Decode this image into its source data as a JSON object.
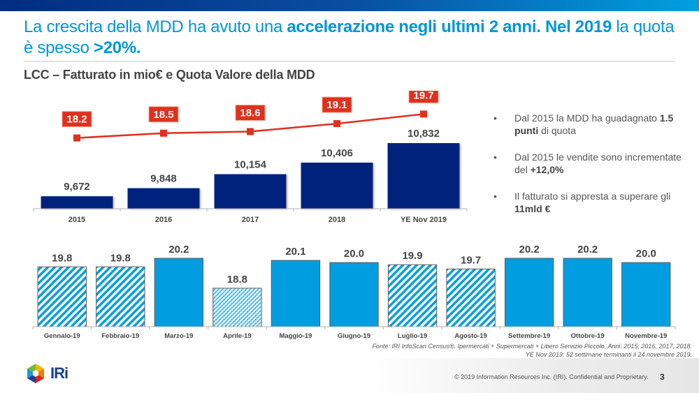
{
  "header": {
    "headline_parts": [
      {
        "text": "La crescita della MDD ha avuto una ",
        "bold": false
      },
      {
        "text": "accelerazione negli ultimi 2 anni. Nel 2019",
        "bold": true
      },
      {
        "text": " la quota è spesso ",
        "bold": false
      },
      {
        "text": ">20%.",
        "bold": true
      }
    ],
    "subtitle": "LCC – Fatturato in mio€ e Quota Valore della MDD"
  },
  "colors": {
    "bar_navy": "#00237d",
    "line_red": "#e0301e",
    "bar_blue": "#009ee0",
    "headline_blue": "#0096d6"
  },
  "chart_data": [
    {
      "type": "bar",
      "title": "Fatturato in mio€ e Quota Valore della MDD",
      "categories": [
        "2015",
        "2016",
        "2017",
        "2018",
        "YE Nov 2019"
      ],
      "series": [
        {
          "name": "Fatturato (mio€)",
          "kind": "bar",
          "values": [
            9672,
            9848,
            10154,
            10406,
            10832
          ],
          "labels": [
            "9,672",
            "9,848",
            "10,154",
            "10,406",
            "10,832"
          ]
        },
        {
          "name": "Quota Valore MDD (%)",
          "kind": "line",
          "values": [
            18.2,
            18.5,
            18.6,
            19.1,
            19.7
          ],
          "labels": [
            "18.2",
            "18.5",
            "18.6",
            "19.1",
            "19.7"
          ]
        }
      ],
      "xlabel": "",
      "ylabel": "",
      "grid": false,
      "legend": "none"
    },
    {
      "type": "bar",
      "title": "Quota Valore MDD mensile 2019",
      "categories": [
        "Gennaio-19",
        "Febbraio-19",
        "Marzo-19",
        "Aprile-19",
        "Maggio-19",
        "Giugno-19",
        "Luglio-19",
        "Agosto-19",
        "Settembre-19",
        "Ottobre-19",
        "Novembre-19"
      ],
      "values": [
        19.8,
        19.8,
        20.2,
        18.8,
        20.1,
        20.0,
        19.9,
        19.7,
        20.2,
        20.2,
        20.0
      ],
      "labels": [
        "19.8",
        "19.8",
        "20.2",
        "18.8",
        "20.1",
        "20.0",
        "19.9",
        "19.7",
        "20.2",
        "20.2",
        "20.0"
      ],
      "fill_styles": [
        "hatch",
        "hatch",
        "solid",
        "dotted-hatch",
        "solid",
        "solid",
        "hatch",
        "hatch",
        "solid",
        "solid",
        "solid"
      ],
      "xlabel": "",
      "ylabel": "",
      "grid": false,
      "legend": "none"
    }
  ],
  "bullets": [
    {
      "parts": [
        {
          "text": "Dal 2015 la MDD ha guadagnato ",
          "bold": false
        },
        {
          "text": "1.5 punti",
          "bold": true
        },
        {
          "text": " di quota",
          "bold": false
        }
      ]
    },
    {
      "parts": [
        {
          "text": "Dal 2015 le vendite sono incrementate del ",
          "bold": false
        },
        {
          "text": "+12,0%",
          "bold": true
        }
      ]
    },
    {
      "parts": [
        {
          "text": "Il fatturato si appresta a superare gli ",
          "bold": false
        },
        {
          "text": "11mld €",
          "bold": true
        }
      ]
    }
  ],
  "bullet_glyph": "•",
  "source": {
    "line1": "Fonte: IRI InfoScan Census®. Ipermercati + Supermercati + Libero Servizio Piccolo. Anni: 2015, 2016, 2017, 2018.",
    "line2": "YE Nov 2019: 52 settimane terminanti il 24 novembre 2019."
  },
  "footer": {
    "logo_text": "IRi",
    "copyright": "© 2019 Information Resources Inc. (IRI). Confidential and Proprietary.",
    "page_number": "3"
  }
}
